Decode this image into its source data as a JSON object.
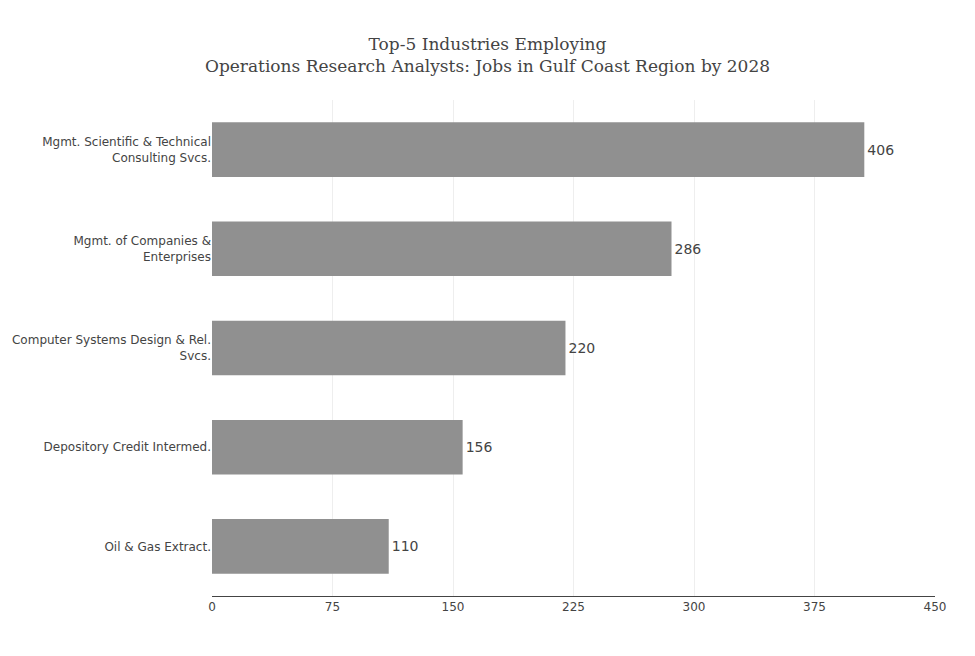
{
  "chart_data": {
    "type": "bar",
    "orientation": "horizontal",
    "title": "Top-5 Industries Employing\nOperations Research Analysts: Jobs in Gulf Coast Region by 2028",
    "categories": [
      "Oil & Gas Extract.",
      "Depository Credit Intermed.",
      "Computer Systems Design & Rel.\nSvcs.",
      "Mgmt. of Companies &\nEnterprises",
      "Mgmt. Scientific & Technical\nConsulting Svcs."
    ],
    "values": [
      110,
      156,
      220,
      286,
      406
    ],
    "color": "#909090",
    "xlim": [
      0,
      450
    ],
    "xticks": [
      0,
      75,
      150,
      225,
      300,
      375,
      450
    ],
    "grid": true,
    "data_labels": true
  }
}
